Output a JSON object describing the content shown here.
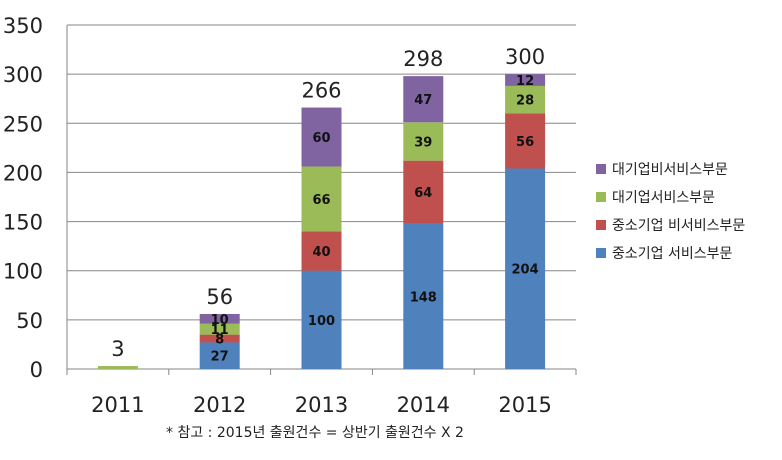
{
  "chart_data": {
    "type": "bar",
    "stacked": true,
    "categories": [
      "2011",
      "2012",
      "2013",
      "2014",
      "2015"
    ],
    "series": [
      {
        "name": "중소기업 서비스부문",
        "color": "#4F81BD",
        "values": [
          0,
          27,
          100,
          148,
          204
        ],
        "labels": [
          "",
          "27",
          "100",
          "148",
          "204"
        ]
      },
      {
        "name": "중소기업 비서비스부문",
        "color": "#C0504D",
        "values": [
          0,
          8,
          40,
          64,
          56
        ],
        "labels": [
          "",
          "8",
          "40",
          "64",
          "56"
        ]
      },
      {
        "name": "대기업서비스부문",
        "color": "#9BBB59",
        "values": [
          3,
          11,
          66,
          39,
          28
        ],
        "labels": [
          "",
          "11",
          "66",
          "39",
          "28"
        ]
      },
      {
        "name": "대기업비서비스부문",
        "color": "#8064A2",
        "values": [
          0,
          10,
          60,
          47,
          12
        ],
        "labels": [
          "",
          "10",
          "60",
          "47",
          "12"
        ]
      }
    ],
    "totals": [
      "3",
      "56",
      "266",
      "298",
      "300"
    ],
    "ylim": [
      0,
      350
    ],
    "yticks": [
      "0",
      "50",
      "100",
      "150",
      "200",
      "250",
      "300",
      "350"
    ],
    "grid": true,
    "legend_position": "right",
    "footnote": "* 참고 : 2015년 출원건수 =  상반기 출원건수 X 2"
  }
}
